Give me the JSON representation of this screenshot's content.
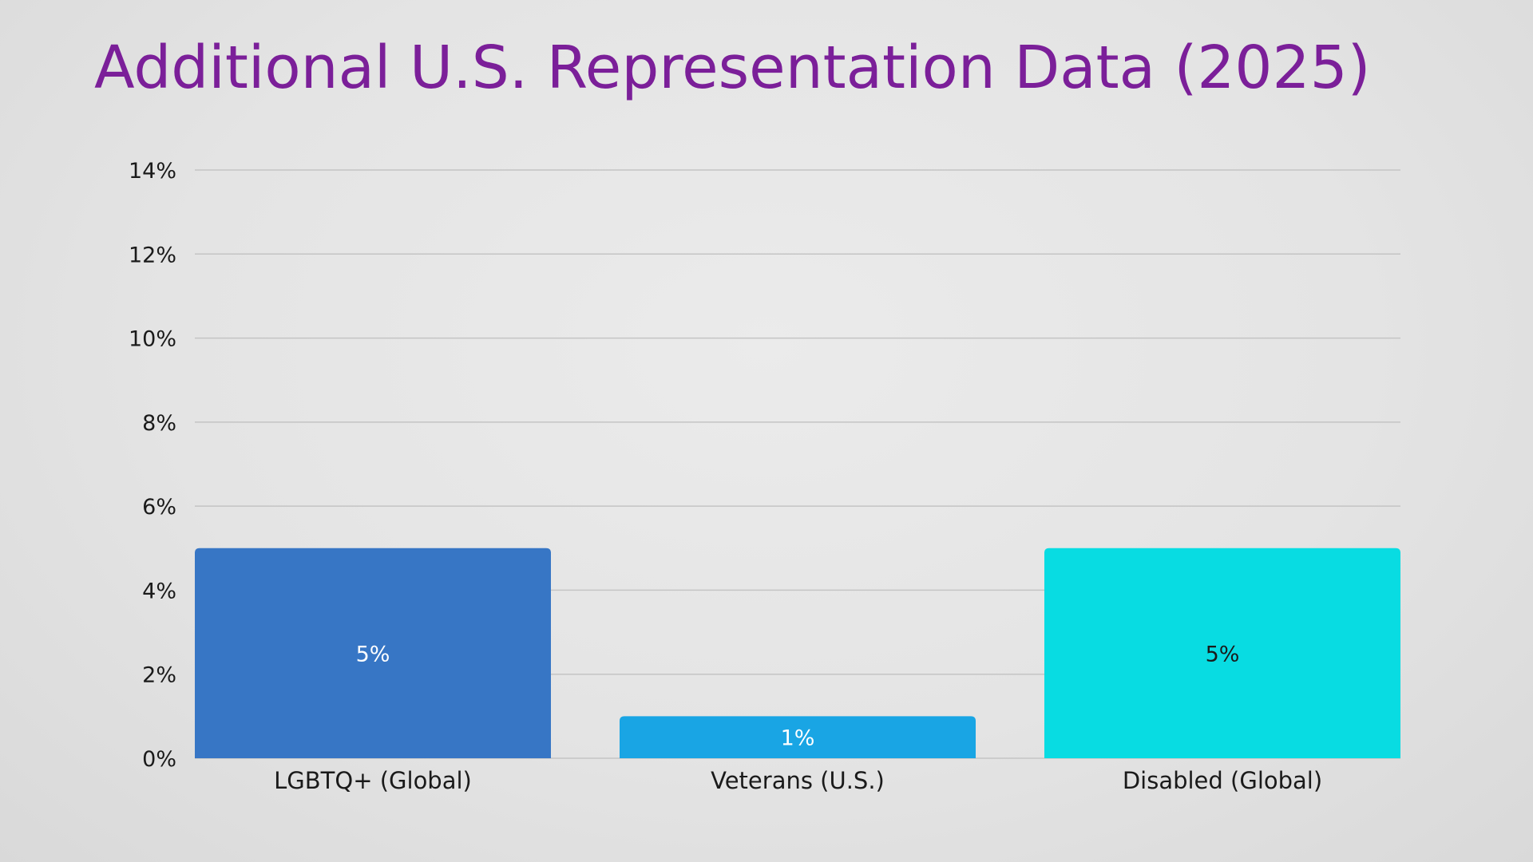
{
  "slide": {
    "title": "Additional U.S. Representation Data (2025)"
  },
  "chart_data": {
    "type": "bar",
    "title": "",
    "xlabel": "",
    "ylabel": "",
    "categories": [
      "LGBTQ+ (Global)",
      "Veterans (U.S.)",
      "Disabled (Global)"
    ],
    "values": [
      5,
      1,
      5
    ],
    "data_labels": [
      "5%",
      "1%",
      "5%"
    ],
    "bar_colors": [
      "#3776c5",
      "#19a5e4",
      "#08dce2"
    ],
    "data_label_colors": [
      "#ffffff",
      "#ffffff",
      "#1a1a1a"
    ],
    "ylim": [
      0,
      14
    ],
    "yticks": [
      0,
      2,
      4,
      6,
      8,
      10,
      12,
      14
    ],
    "ytick_labels": [
      "0%",
      "2%",
      "4%",
      "6%",
      "8%",
      "10%",
      "12%",
      "14%"
    ],
    "grid": true,
    "legend": "none"
  }
}
